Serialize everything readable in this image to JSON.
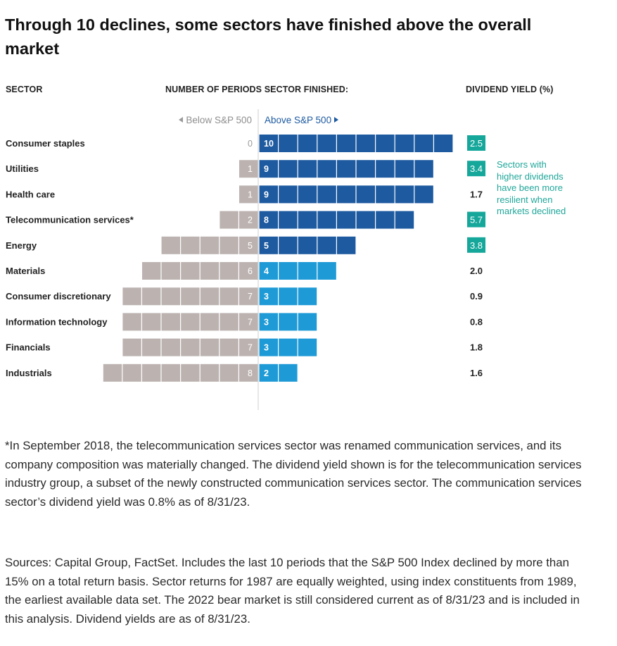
{
  "title": "Through 10 declines, some sectors have finished above the overall market",
  "headers": {
    "sector": "SECTOR",
    "periods": "NUMBER OF PERIODS SECTOR FINISHED:",
    "yield": "DIVIDEND YIELD (%)"
  },
  "direction_labels": {
    "below": "Below S&P 500",
    "above": "Above S&P 500"
  },
  "callout": "Sectors with higher dividends have been more resilient when markets declined",
  "colors": {
    "below": "#bcb3b1",
    "above_dark": "#1d5aa0",
    "above_light": "#1e9ad6",
    "yield_highlight": "#16a79b",
    "divider": "#cfcfcf"
  },
  "chart_data": {
    "type": "bar",
    "categories": [
      "Consumer staples",
      "Utilities",
      "Health care",
      "Telecommunication services*",
      "Energy",
      "Materials",
      "Consumer discretionary",
      "Information technology",
      "Financials",
      "Industrials"
    ],
    "series": [
      {
        "name": "Below S&P 500",
        "values": [
          0,
          1,
          1,
          2,
          5,
          6,
          7,
          7,
          7,
          8
        ]
      },
      {
        "name": "Above S&P 500",
        "values": [
          10,
          9,
          9,
          8,
          5,
          4,
          3,
          3,
          3,
          2
        ]
      }
    ],
    "dividend_yield": [
      "2.5",
      "3.4",
      "1.7",
      "5.7",
      "3.8",
      "2.0",
      "0.9",
      "0.8",
      "1.8",
      "1.6"
    ],
    "yield_highlighted": [
      true,
      true,
      false,
      true,
      true,
      false,
      false,
      false,
      false,
      false
    ]
  },
  "footnotes": [
    "*In September 2018, the telecommunication services sector was renamed communication services, and its company composition was materially changed. The dividend yield shown is for the telecommunication services industry group, a subset of the newly constructed communication services sector. The communication services sector’s dividend yield was 0.8% as of 8/31/23.",
    "Sources: Capital Group, FactSet. Includes the last 10 periods that the S&P 500 Index declined by more than 15% on a total return basis. Sector returns for 1987 are equally weighted, using index constituents from 1989, the earliest available data set. The 2022 bear market is still considered current as of 8/31/23 and is included in this analysis. Dividend yields are as of 8/31/23."
  ]
}
